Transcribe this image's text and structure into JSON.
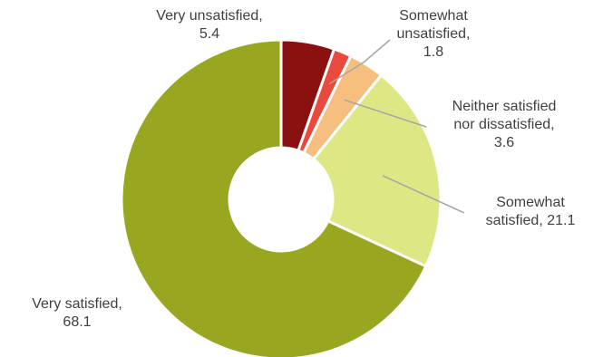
{
  "chart_data": {
    "type": "pie",
    "variant": "donut",
    "title": "",
    "slices": [
      {
        "name": "Very unsatisfied",
        "value": 5.4,
        "color": "#8B1111"
      },
      {
        "name": "Somewhat unsatisfied",
        "value": 1.8,
        "color": "#EA4A3D"
      },
      {
        "name": "Neither satisfied nor dissatisfied",
        "value": 3.6,
        "color": "#F7BF7F"
      },
      {
        "name": "Somewhat satisfied",
        "value": 21.1,
        "color": "#DDE884"
      },
      {
        "name": "Very satisfied",
        "value": 68.1,
        "color": "#99A620"
      }
    ],
    "labels": [
      {
        "lines": [
          "Very unsatisfied,",
          "5.4"
        ]
      },
      {
        "lines": [
          "Somewhat",
          "unsatisfied,",
          "1.8"
        ]
      },
      {
        "lines": [
          "Neither satisfied",
          "nor dissatisfied,",
          "3.6"
        ]
      },
      {
        "lines": [
          "Somewhat",
          "satisfied, 21.1"
        ]
      },
      {
        "lines": [
          "Very satisfied,",
          "68.1"
        ]
      }
    ],
    "legend": "none",
    "slice_border_color": "#FFFFFF",
    "leader_line_color": "#A6A6A6"
  }
}
